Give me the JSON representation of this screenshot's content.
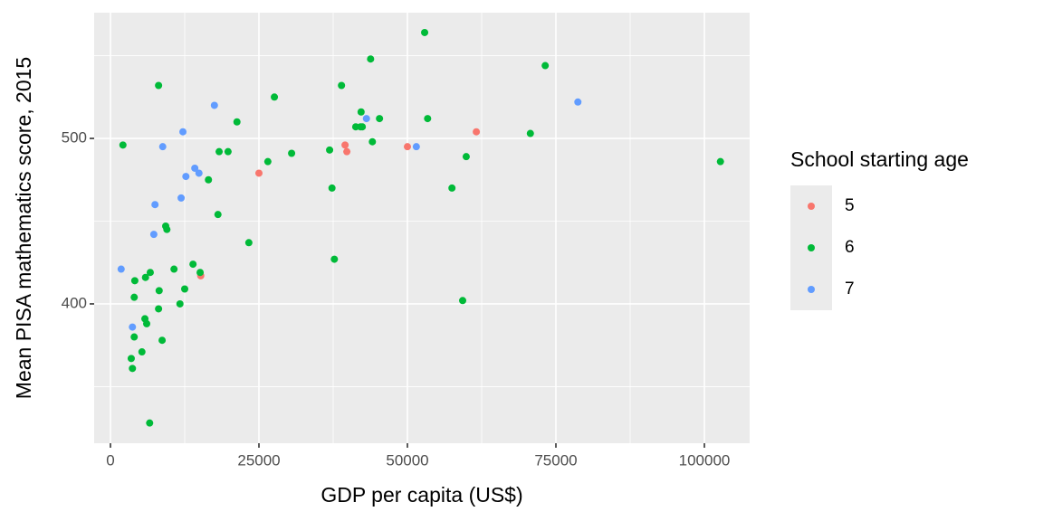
{
  "chart_data": {
    "type": "scatter",
    "x_label": "GDP per capita (US$)",
    "y_label": "Mean PISA mathematics score, 2015",
    "legend_title": "School starting age",
    "legend_position": "right",
    "grid": true,
    "xlim": [
      -2744,
      107622
    ],
    "ylim": [
      315.8,
      576
    ],
    "xticks": [
      0,
      25000,
      50000,
      75000,
      100000
    ],
    "yticks": [
      400,
      500
    ],
    "series": [
      {
        "name": "5",
        "color": "#F8766D",
        "x": [
          25000,
          39500,
          39800,
          50000,
          61600,
          15200
        ],
        "values": [
          479,
          496,
          492,
          495,
          504,
          417
        ]
      },
      {
        "name": "6",
        "color": "#00BA38",
        "x": [
          2100,
          8100,
          3500,
          3700,
          4000,
          4000,
          4100,
          5300,
          5800,
          5900,
          6100,
          6700,
          6600,
          8100,
          8200,
          8700,
          9500,
          9300,
          10700,
          11700,
          12500,
          13900,
          15100,
          16500,
          18100,
          18300,
          19800,
          21300,
          23300,
          26500,
          27600,
          30500,
          36900,
          37300,
          37700,
          38900,
          41300,
          42100,
          42200,
          42400,
          43800,
          44100,
          45300,
          52900,
          53400,
          57500,
          59300,
          59900,
          70700,
          73200,
          102700
        ],
        "values": [
          496,
          532,
          367,
          361,
          380,
          404,
          414,
          371,
          391,
          416,
          388,
          419,
          328,
          397,
          408,
          378,
          445,
          447,
          421,
          400,
          409,
          424,
          419,
          475,
          454,
          492,
          492,
          510,
          437,
          486,
          525,
          491,
          493,
          470,
          427,
          532,
          507,
          507,
          516,
          507,
          548,
          498,
          512,
          564,
          512,
          470,
          402,
          489,
          503,
          544,
          486
        ]
      },
      {
        "name": "7",
        "color": "#619CFF",
        "x": [
          1800,
          3700,
          7300,
          7500,
          8800,
          12200,
          11900,
          12700,
          14200,
          14900,
          17500,
          43100,
          51500,
          78700
        ],
        "values": [
          421,
          386,
          442,
          460,
          495,
          504,
          464,
          477,
          482,
          479,
          520,
          512,
          495,
          522
        ]
      }
    ]
  }
}
